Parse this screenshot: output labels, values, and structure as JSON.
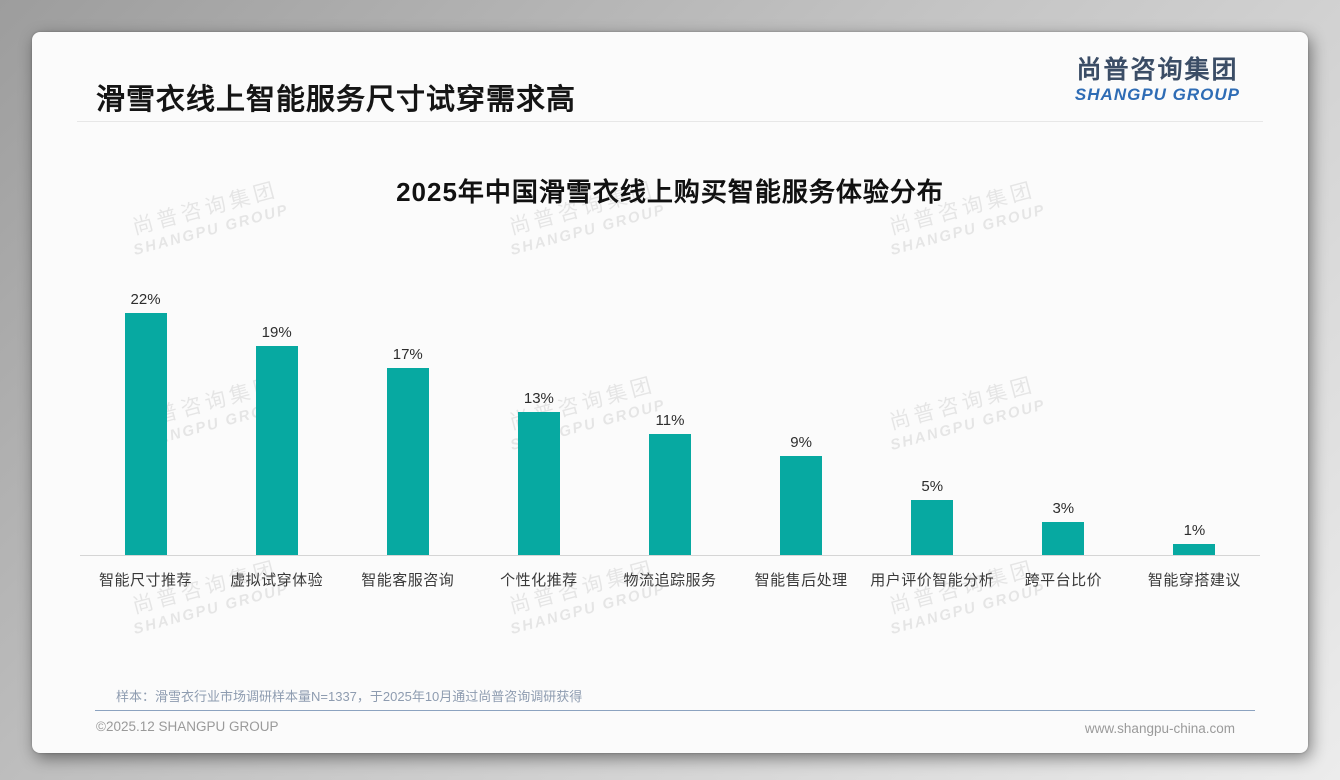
{
  "header": {
    "title": "滑雪衣线上智能服务尺寸试穿需求高"
  },
  "logo": {
    "cn": "尚普咨询集团",
    "en": "SHANGPU GROUP"
  },
  "watermark": {
    "cn": "尚普咨询集团",
    "en": "SHANGPU GROUP"
  },
  "note": "样本：滑雪衣行业市场调研样本量N=1337，于2025年10月通过尚普咨询调研获得",
  "footer": {
    "left": "©2025.12 SHANGPU GROUP",
    "right": "www.shangpu-china.com"
  },
  "chart_data": {
    "type": "bar",
    "title": "2025年中国滑雪衣线上购买智能服务体验分布",
    "categories": [
      "智能尺寸推荐",
      "虚拟试穿体验",
      "智能客服咨询",
      "个性化推荐",
      "物流追踪服务",
      "智能售后处理",
      "用户评价智能分析",
      "跨平台比价",
      "智能穿搭建议"
    ],
    "values": [
      22,
      19,
      17,
      13,
      11,
      9,
      5,
      3,
      1
    ],
    "value_labels": [
      "22%",
      "19%",
      "17%",
      "13%",
      "11%",
      "9%",
      "5%",
      "3%",
      "1%"
    ],
    "xlabel": "",
    "ylabel": "",
    "ylim": [
      0,
      24
    ],
    "grid": false,
    "legend": "none",
    "bar_color": "#07a9a1",
    "axis_line_color": "#d5d5d5"
  }
}
